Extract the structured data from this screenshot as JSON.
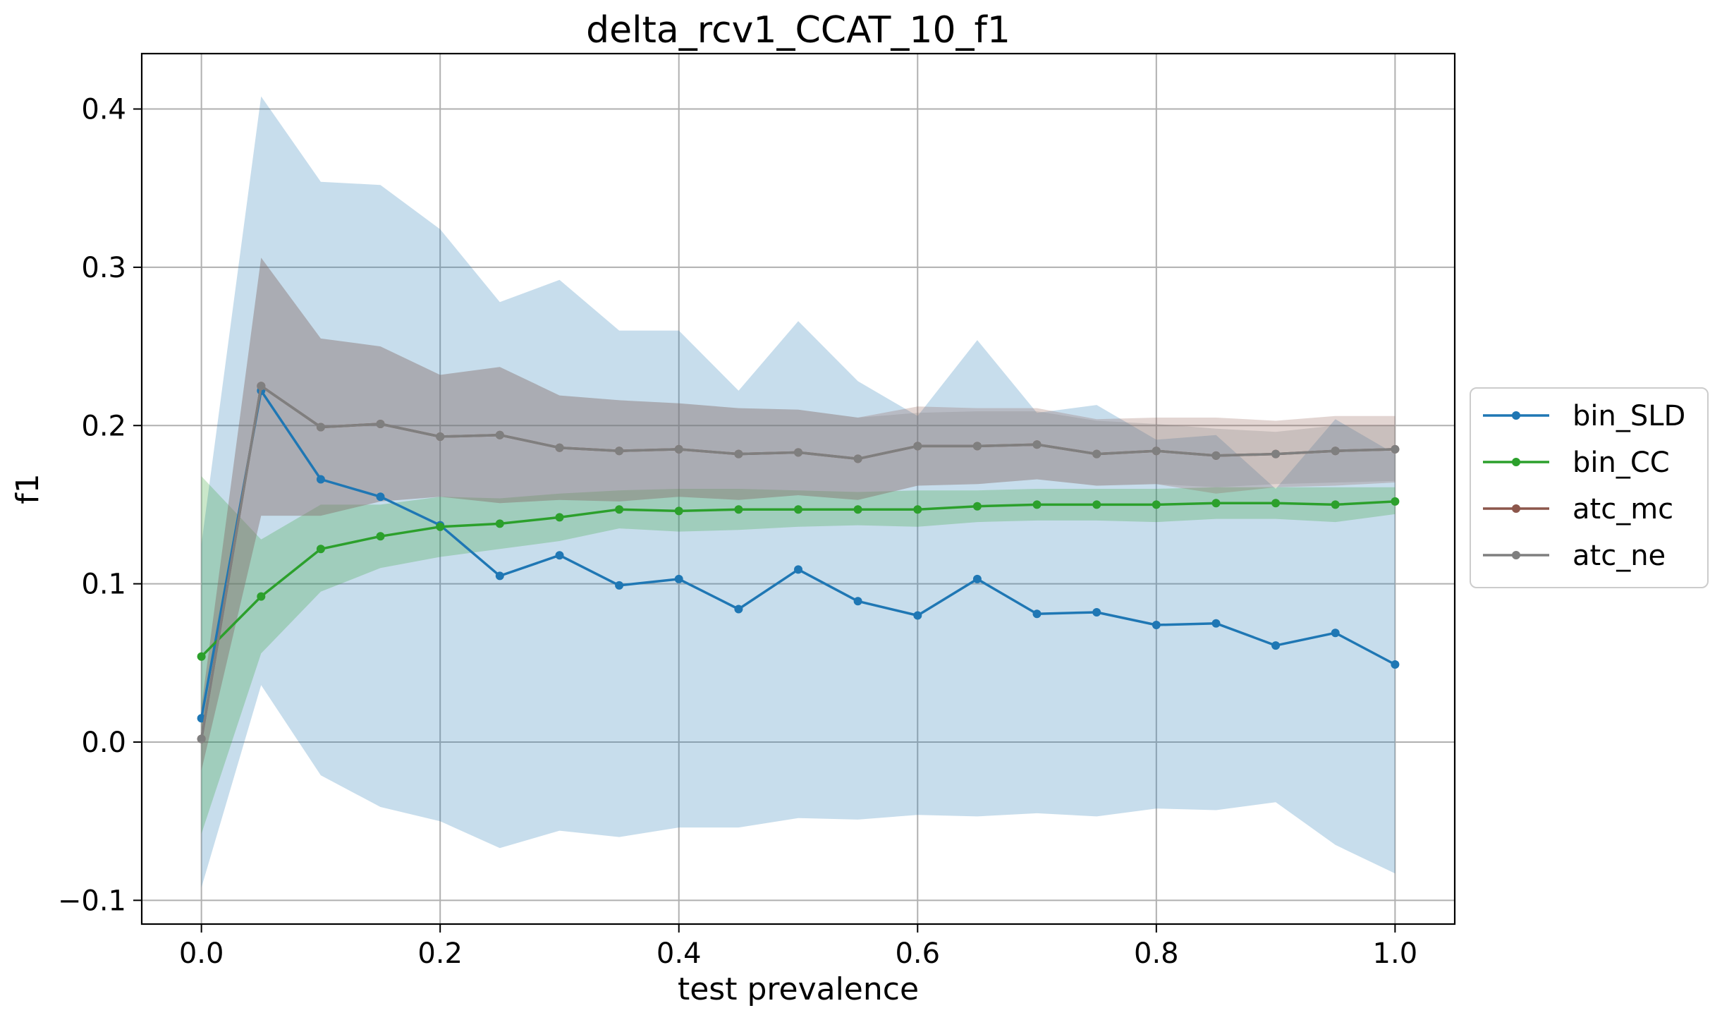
{
  "chart_data": {
    "type": "line",
    "title": "delta_rcv1_CCAT_10_f1",
    "xlabel": "test prevalence",
    "ylabel": "f1",
    "xlim": [
      -0.05,
      1.05
    ],
    "ylim": [
      -0.115,
      0.435
    ],
    "xticks": [
      0.0,
      0.2,
      0.4,
      0.6,
      0.8,
      1.0
    ],
    "xtick_labels": [
      "0.0",
      "0.2",
      "0.4",
      "0.6",
      "0.8",
      "1.0"
    ],
    "yticks": [
      -0.1,
      0.0,
      0.1,
      0.2,
      0.3,
      0.4
    ],
    "ytick_labels": [
      "−0.1",
      "0.0",
      "0.1",
      "0.2",
      "0.3",
      "0.4"
    ],
    "grid": true,
    "legend_position": "outside-right",
    "x": [
      0.0,
      0.05,
      0.1,
      0.15,
      0.2,
      0.25,
      0.3,
      0.35,
      0.4,
      0.45,
      0.5,
      0.55,
      0.6,
      0.65,
      0.7,
      0.75,
      0.8,
      0.85,
      0.9,
      0.95,
      1.0
    ],
    "series": [
      {
        "name": "bin_SLD",
        "color": "#1f77b4",
        "values": [
          0.015,
          0.222,
          0.166,
          0.155,
          0.137,
          0.105,
          0.118,
          0.099,
          0.103,
          0.084,
          0.109,
          0.089,
          0.08,
          0.103,
          0.081,
          0.082,
          0.074,
          0.075,
          0.061,
          0.069,
          0.049
        ],
        "band_upper": [
          0.125,
          0.408,
          0.354,
          0.352,
          0.324,
          0.278,
          0.292,
          0.26,
          0.26,
          0.222,
          0.266,
          0.228,
          0.206,
          0.254,
          0.208,
          0.213,
          0.191,
          0.194,
          0.16,
          0.204,
          0.182
        ],
        "band_lower": [
          -0.092,
          0.036,
          -0.021,
          -0.041,
          -0.05,
          -0.067,
          -0.056,
          -0.06,
          -0.054,
          -0.054,
          -0.048,
          -0.049,
          -0.046,
          -0.047,
          -0.045,
          -0.047,
          -0.042,
          -0.043,
          -0.038,
          -0.065,
          -0.083
        ]
      },
      {
        "name": "bin_CC",
        "color": "#2ca02c",
        "values": [
          0.054,
          0.092,
          0.122,
          0.13,
          0.136,
          0.138,
          0.142,
          0.147,
          0.146,
          0.147,
          0.147,
          0.147,
          0.147,
          0.149,
          0.15,
          0.15,
          0.15,
          0.151,
          0.151,
          0.15,
          0.152
        ],
        "band_upper": [
          0.168,
          0.128,
          0.15,
          0.15,
          0.155,
          0.154,
          0.157,
          0.159,
          0.16,
          0.16,
          0.159,
          0.158,
          0.159,
          0.159,
          0.16,
          0.16,
          0.16,
          0.161,
          0.161,
          0.161,
          0.161
        ],
        "band_lower": [
          -0.058,
          0.056,
          0.095,
          0.11,
          0.117,
          0.122,
          0.127,
          0.135,
          0.133,
          0.134,
          0.136,
          0.137,
          0.136,
          0.139,
          0.14,
          0.14,
          0.139,
          0.141,
          0.141,
          0.139,
          0.144
        ]
      },
      {
        "name": "atc_mc",
        "color": "#8c564b",
        "values": [
          0.002,
          0.225,
          0.199,
          0.201,
          0.193,
          0.194,
          0.186,
          0.184,
          0.185,
          0.182,
          0.183,
          0.179,
          0.187,
          0.187,
          0.188,
          0.182,
          0.184,
          0.181,
          0.182,
          0.184,
          0.185
        ],
        "band_upper": [
          0.022,
          0.306,
          0.255,
          0.25,
          0.232,
          0.237,
          0.219,
          0.216,
          0.214,
          0.211,
          0.21,
          0.205,
          0.212,
          0.211,
          0.211,
          0.204,
          0.205,
          0.205,
          0.203,
          0.206,
          0.206
        ],
        "band_lower": [
          -0.018,
          0.143,
          0.143,
          0.152,
          0.155,
          0.151,
          0.153,
          0.152,
          0.155,
          0.153,
          0.156,
          0.153,
          0.162,
          0.163,
          0.166,
          0.162,
          0.163,
          0.157,
          0.161,
          0.162,
          0.164
        ]
      },
      {
        "name": "atc_ne",
        "color": "#7f7f7f",
        "values": [
          0.002,
          0.225,
          0.199,
          0.201,
          0.193,
          0.194,
          0.186,
          0.184,
          0.185,
          0.182,
          0.183,
          0.179,
          0.187,
          0.187,
          0.188,
          0.182,
          0.184,
          0.181,
          0.182,
          0.184,
          0.185
        ],
        "band_upper": [
          0.022,
          0.306,
          0.255,
          0.25,
          0.232,
          0.237,
          0.219,
          0.216,
          0.214,
          0.211,
          0.21,
          0.205,
          0.208,
          0.209,
          0.209,
          0.203,
          0.201,
          0.198,
          0.196,
          0.2,
          0.2
        ],
        "band_lower": [
          -0.018,
          0.143,
          0.143,
          0.152,
          0.155,
          0.151,
          0.153,
          0.152,
          0.155,
          0.153,
          0.156,
          0.153,
          0.162,
          0.163,
          0.166,
          0.162,
          0.163,
          0.161,
          0.163,
          0.164,
          0.165
        ]
      }
    ]
  }
}
